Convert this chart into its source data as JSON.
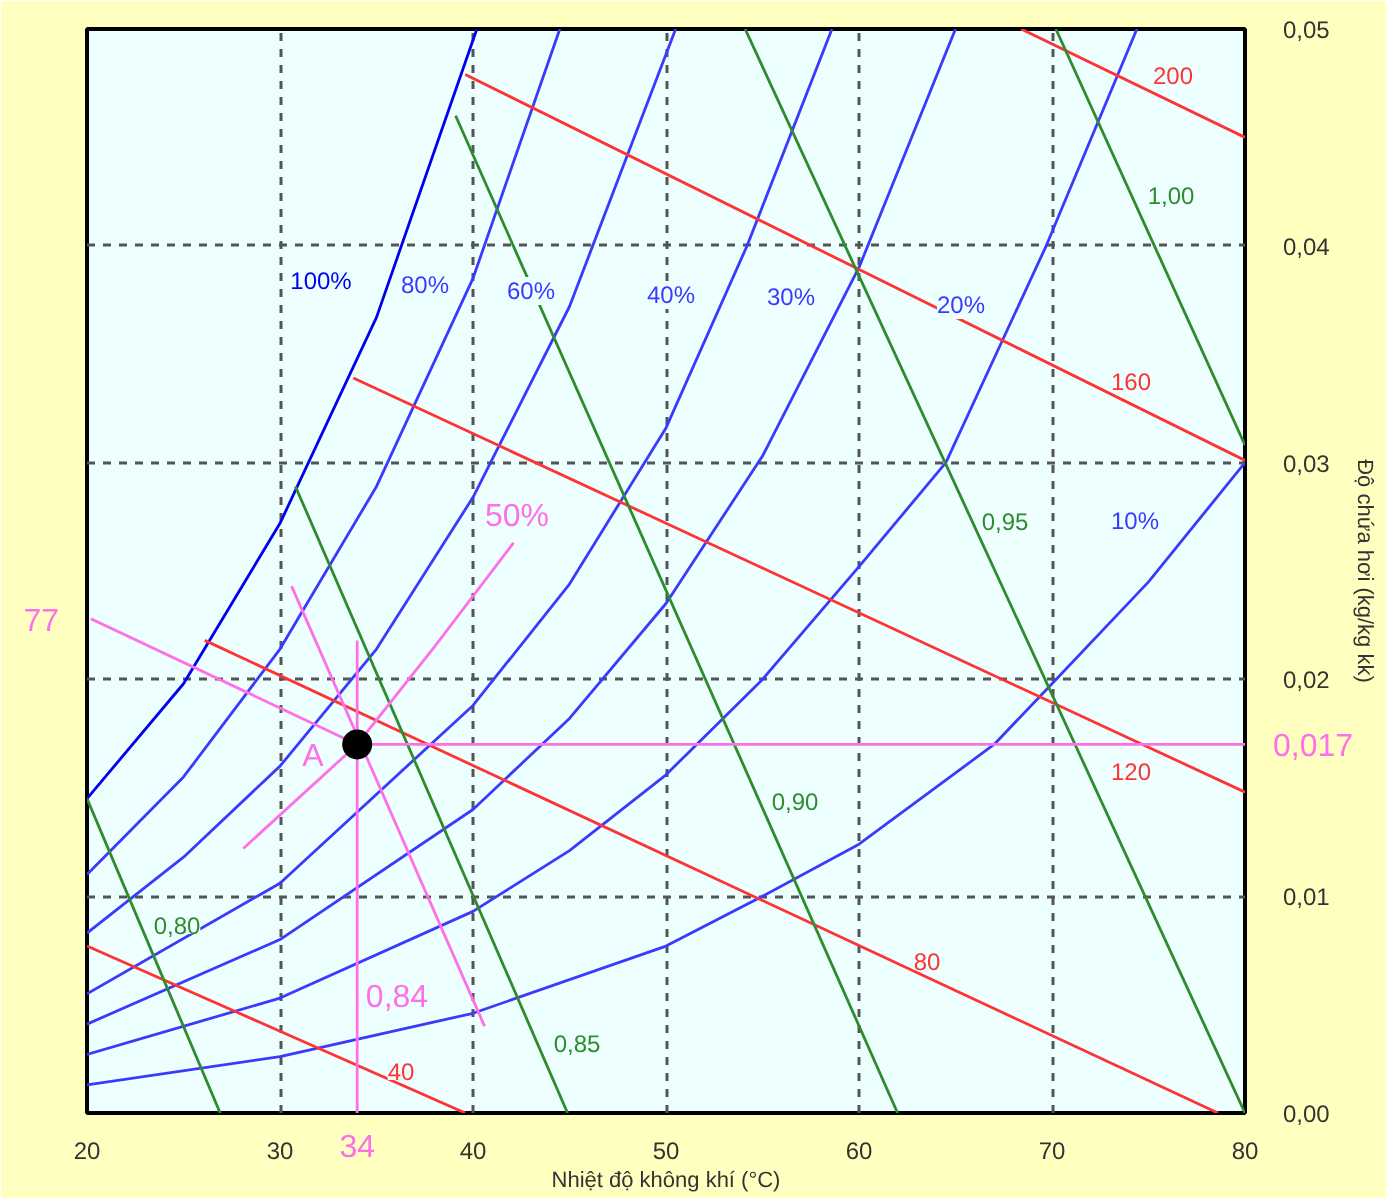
{
  "chart_data": {
    "type": "line",
    "xlabel": "Nhiệt độ không khí (°C)",
    "ylabel": "Độ chứa hơi (kg/kg kk)",
    "xlim": [
      20,
      80
    ],
    "ylim": [
      0,
      0.05
    ],
    "xticks": [
      20,
      30,
      40,
      50,
      60,
      70,
      80
    ],
    "yticks": [
      {
        "value": 0,
        "label": "0,00"
      },
      {
        "value": 0.01,
        "label": "0,01"
      },
      {
        "value": 0.02,
        "label": "0,02"
      },
      {
        "value": 0.03,
        "label": "0,03"
      },
      {
        "value": 0.04,
        "label": "0,04"
      },
      {
        "value": 0.05,
        "label": "0,05"
      }
    ],
    "grid": true,
    "marker": "none",
    "line_style": "solid",
    "series": [
      {
        "color": "#0000ee",
        "x": [
          20,
          25,
          30,
          35,
          40.2
        ],
        "values": [
          0.0145,
          0.0198,
          0.0272,
          0.0367,
          0.05
        ]
      },
      {
        "color": "#3a3aff",
        "x": [
          20,
          25,
          30,
          35,
          40,
          44.5
        ],
        "values": [
          0.011,
          0.0155,
          0.0214,
          0.0289,
          0.0385,
          0.05
        ]
      },
      {
        "color": "#3a3aff",
        "x": [
          20,
          25,
          30,
          35,
          40,
          45,
          50.5
        ],
        "values": [
          0.0083,
          0.0118,
          0.016,
          0.0214,
          0.0284,
          0.0372,
          0.05
        ]
      },
      {
        "color": "#3a3aff",
        "x": [
          20,
          30,
          40,
          45,
          50,
          54.2,
          58.6
        ],
        "values": [
          0.0055,
          0.0106,
          0.0188,
          0.0244,
          0.0316,
          0.04,
          0.05
        ]
      },
      {
        "color": "#3a3aff",
        "x": [
          20,
          30,
          40,
          45,
          50,
          55,
          60,
          65
        ],
        "values": [
          0.0041,
          0.008,
          0.014,
          0.0182,
          0.0235,
          0.0303,
          0.039,
          0.05
        ]
      },
      {
        "color": "#3a3aff",
        "x": [
          20,
          30,
          40,
          45,
          50,
          55,
          60,
          64.5,
          69.7,
          74.4
        ],
        "values": [
          0.0027,
          0.0053,
          0.0093,
          0.0121,
          0.0156,
          0.02,
          0.0252,
          0.03,
          0.04,
          0.05
        ]
      },
      {
        "color": "#3a3aff",
        "x": [
          20,
          30,
          40,
          50,
          55,
          60,
          67,
          70,
          75,
          80
        ],
        "values": [
          0.0013,
          0.0026,
          0.0046,
          0.0077,
          0.01,
          0.0124,
          0.017,
          0.0198,
          0.0245,
          0.03
        ]
      },
      {
        "color": "#ff3333",
        "x": [
          20,
          39.6
        ],
        "values": [
          0.0077,
          0
        ]
      },
      {
        "color": "#ff3333",
        "x": [
          26.1,
          78.6
        ],
        "values": [
          0.0218,
          0
        ]
      },
      {
        "color": "#ff3333",
        "x": [
          33.8,
          80
        ],
        "values": [
          0.0339,
          0.0148
        ]
      },
      {
        "color": "#ff3333",
        "x": [
          39.6,
          80
        ],
        "values": [
          0.0479,
          0.0301
        ]
      },
      {
        "color": "#ff3333",
        "x": [
          68.4,
          80
        ],
        "values": [
          0.05,
          0.045
        ]
      },
      {
        "color": "#2e8b2e",
        "x": [
          20,
          26.9
        ],
        "values": [
          0.0145,
          0
        ]
      },
      {
        "color": "#2e8b2e",
        "x": [
          30.8,
          44.9
        ],
        "values": [
          0.0289,
          0
        ]
      },
      {
        "color": "#2e8b2e",
        "x": [
          39.1,
          62
        ],
        "values": [
          0.046,
          0
        ]
      },
      {
        "color": "#2e8b2e",
        "x": [
          54.1,
          80
        ],
        "values": [
          0.05,
          0
        ]
      },
      {
        "color": "#2e8b2e",
        "x": [
          70.2,
          80
        ],
        "values": [
          0.05,
          0.0308
        ]
      },
      {
        "color": "#ff6fe8",
        "x": [
          28.1,
          34,
          38,
          42.1
        ],
        "values": [
          0.0122,
          0.017,
          0.0215,
          0.0263
        ]
      },
      {
        "color": "#ff6fe8",
        "x": [
          30.6,
          40.6
        ],
        "values": [
          0.0243,
          0.004
        ]
      },
      {
        "color": "#ff6fe8",
        "x": [
          34,
          20.2
        ],
        "values": [
          0.017,
          0.0228
        ]
      },
      {
        "color": "#ff6fe8",
        "x": [
          34,
          80
        ],
        "values": [
          0.017,
          0.017
        ]
      },
      {
        "color": "#ff6fe8",
        "x": [
          34,
          34
        ],
        "values": [
          0.0218,
          0
        ]
      },
      {
        "type": "scatter",
        "marker": "circle",
        "color": "#000000",
        "x": [
          34
        ],
        "values": [
          0.017
        ]
      }
    ],
    "annotations": [
      "100%",
      "80%",
      "60%",
      "40%",
      "30%",
      "20%",
      "10%",
      "40",
      "80",
      "120",
      "160",
      "200",
      "0,80",
      "0,85",
      "0,90",
      "0,95",
      "1,00",
      "50%",
      "0,84",
      "77",
      "0,017",
      "34",
      "A"
    ]
  }
}
